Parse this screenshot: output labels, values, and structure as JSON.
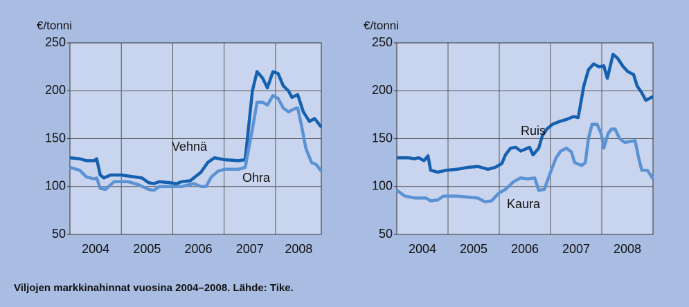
{
  "chart_data": [
    {
      "type": "line",
      "y_label": "€/tonni",
      "xlim": [
        2004,
        2008.89
      ],
      "ylim": [
        50,
        250
      ],
      "yticks": [
        50,
        100,
        150,
        200,
        250
      ],
      "xticks": [
        {
          "value": 2004.5,
          "label": "2004"
        },
        {
          "value": 2005.5,
          "label": "2005"
        },
        {
          "value": 2006.5,
          "label": "2006"
        },
        {
          "value": 2007.5,
          "label": "2007"
        },
        {
          "value": 2008.45,
          "label": "2008"
        }
      ],
      "xgrid": [
        2005,
        2006,
        2007,
        2008
      ],
      "grid": true,
      "series": [
        {
          "name": "Vehnä",
          "color": "#1560b0",
          "x": [
            2004,
            2004.19,
            2004.32,
            2004.47,
            2004.52,
            2004.59,
            2004.66,
            2004.79,
            2005.0,
            2005.13,
            2005.26,
            2005.4,
            2005.53,
            2005.63,
            2005.74,
            2005.94,
            2006.08,
            2006.17,
            2006.34,
            2006.55,
            2006.68,
            2006.81,
            2007.01,
            2007.28,
            2007.41,
            2007.55,
            2007.64,
            2007.75,
            2007.84,
            2007.95,
            2008.05,
            2008.15,
            2008.25,
            2008.32,
            2008.43,
            2008.54,
            2008.66,
            2008.76,
            2008.89
          ],
          "values": [
            130,
            129,
            127,
            127,
            129,
            112,
            109,
            112,
            112,
            111,
            110,
            109,
            104,
            103,
            105,
            104,
            103,
            105,
            106,
            115,
            125,
            130,
            128,
            127,
            128,
            200,
            220,
            213,
            203,
            220,
            218,
            205,
            200,
            193,
            196,
            178,
            168,
            171,
            162
          ]
        },
        {
          "name": "Ohra",
          "color": "#5b92d4",
          "x": [
            2004,
            2004.19,
            2004.32,
            2004.47,
            2004.52,
            2004.59,
            2004.69,
            2004.86,
            2005.13,
            2005.33,
            2005.53,
            2005.63,
            2005.74,
            2006.17,
            2006.41,
            2006.55,
            2006.65,
            2006.75,
            2006.88,
            2007.01,
            2007.28,
            2007.41,
            2007.55,
            2007.64,
            2007.75,
            2007.84,
            2007.95,
            2008.05,
            2008.15,
            2008.25,
            2008.36,
            2008.43,
            2008.5,
            2008.59,
            2008.7,
            2008.79,
            2008.89
          ],
          "values": [
            120,
            117,
            110,
            108,
            109,
            98,
            97,
            105,
            105,
            102,
            97,
            96,
            100,
            100,
            103,
            100,
            100,
            110,
            116,
            118,
            118,
            120,
            160,
            188,
            188,
            185,
            195,
            192,
            182,
            178,
            181,
            182,
            165,
            140,
            125,
            123,
            116
          ]
        }
      ]
    },
    {
      "type": "line",
      "y_label": "€/tonni",
      "xlim": [
        2004,
        2009
      ],
      "ylim": [
        50,
        250
      ],
      "yticks": [
        50,
        100,
        150,
        200,
        250
      ],
      "xticks": [
        {
          "value": 2004.5,
          "label": "2004"
        },
        {
          "value": 2005.5,
          "label": "2005"
        },
        {
          "value": 2006.5,
          "label": "2006"
        },
        {
          "value": 2007.5,
          "label": "2007"
        },
        {
          "value": 2008.5,
          "label": "2008"
        }
      ],
      "xgrid": [
        2005,
        2006,
        2007,
        2008
      ],
      "grid": true,
      "series": [
        {
          "name": "Ruis",
          "color": "#1560b0",
          "x": [
            2004,
            2004.23,
            2004.34,
            2004.43,
            2004.53,
            2004.61,
            2004.66,
            2004.8,
            2004.97,
            2005.18,
            2005.38,
            2005.58,
            2005.78,
            2005.92,
            2006.05,
            2006.12,
            2006.22,
            2006.32,
            2006.42,
            2006.59,
            2006.66,
            2006.77,
            2006.84,
            2006.93,
            2007.04,
            2007.18,
            2007.31,
            2007.45,
            2007.54,
            2007.65,
            2007.74,
            2007.84,
            2007.95,
            2008.04,
            2008.11,
            2008.22,
            2008.31,
            2008.42,
            2008.51,
            2008.62,
            2008.69,
            2008.78,
            2008.86,
            2009
          ],
          "values": [
            130,
            130,
            129,
            130,
            127,
            132,
            117,
            115,
            117,
            118,
            120,
            121,
            118,
            120,
            124,
            133,
            140,
            141,
            137,
            141,
            133,
            140,
            153,
            160,
            165,
            168,
            170,
            173,
            172,
            205,
            222,
            228,
            225,
            226,
            213,
            238,
            234,
            225,
            220,
            217,
            205,
            198,
            190,
            194
          ]
        },
        {
          "name": "Kaura",
          "color": "#5b92d4",
          "x": [
            2004,
            2004.16,
            2004.36,
            2004.57,
            2004.66,
            2004.8,
            2004.91,
            2005.18,
            2005.58,
            2005.72,
            2005.85,
            2005.99,
            2006.12,
            2006.28,
            2006.42,
            2006.55,
            2006.69,
            2006.77,
            2006.88,
            2007.0,
            2007.11,
            2007.2,
            2007.31,
            2007.41,
            2007.47,
            2007.61,
            2007.68,
            2007.74,
            2007.81,
            2007.91,
            2007.99,
            2008.04,
            2008.12,
            2008.19,
            2008.26,
            2008.35,
            2008.45,
            2008.55,
            2008.65,
            2008.72,
            2008.78,
            2008.89,
            2009
          ],
          "values": [
            96,
            90,
            88,
            88,
            85,
            86,
            90,
            90,
            88,
            84,
            85,
            93,
            97,
            105,
            109,
            108,
            109,
            96,
            97,
            115,
            130,
            137,
            140,
            136,
            125,
            122,
            125,
            150,
            165,
            165,
            155,
            140,
            155,
            160,
            160,
            150,
            146,
            147,
            148,
            130,
            117,
            117,
            108
          ]
        }
      ]
    }
  ],
  "caption": "Viljojen markkinahinnat vuosina 2004–2008. Lähde: Tike."
}
